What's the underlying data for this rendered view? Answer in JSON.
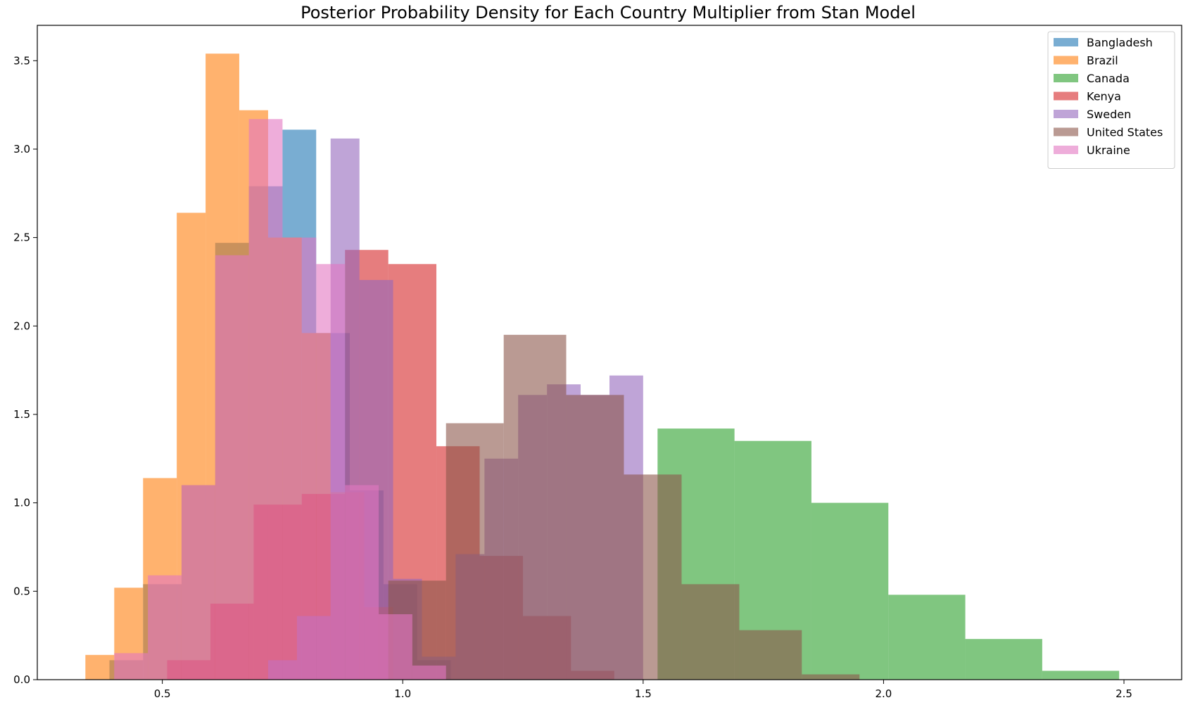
{
  "chart_data": {
    "type": "histogram",
    "title": "Posterior Probability Density for Each Country Multiplier from Stan Model",
    "xlabel": "",
    "ylabel": "",
    "xlim": [
      0.24,
      2.62
    ],
    "ylim": [
      0,
      3.7
    ],
    "xticks": [
      "0.5",
      "1.0",
      "1.5",
      "2.0",
      "2.5"
    ],
    "xtick_values": [
      0.5,
      1.0,
      1.5,
      2.0,
      2.5
    ],
    "yticks": [
      "0.0",
      "0.5",
      "1.0",
      "1.5",
      "2.0",
      "2.5",
      "3.0",
      "3.5"
    ],
    "ytick_values": [
      0,
      0.5,
      1.0,
      1.5,
      2.0,
      2.5,
      3.0,
      3.5
    ],
    "grid": false,
    "legend_position": "upper right",
    "alpha": 0.6,
    "series": [
      {
        "name": "Bangladesh",
        "color": "#1f77b4",
        "edges": [
          0.39,
          0.46,
          0.54,
          0.61,
          0.68,
          0.75,
          0.82,
          0.89,
          0.96,
          1.03,
          1.1
        ],
        "values": [
          0.11,
          0.54,
          1.1,
          2.47,
          2.79,
          3.11,
          1.96,
          1.07,
          0.54,
          0.11
        ]
      },
      {
        "name": "Brazil",
        "color": "#ff7f0e",
        "edges": [
          0.34,
          0.4,
          0.46,
          0.53,
          0.59,
          0.66,
          0.72,
          0.79,
          0.85,
          0.92,
          0.98
        ],
        "values": [
          0.14,
          0.52,
          1.14,
          2.64,
          3.54,
          3.22,
          2.5,
          1.96,
          1.06,
          0.41
        ]
      },
      {
        "name": "Canada",
        "color": "#2ca02c",
        "edges": [
          1.53,
          1.69,
          1.85,
          2.01,
          2.17,
          2.33,
          2.49
        ],
        "values": [
          1.42,
          1.35,
          1.0,
          0.48,
          0.23,
          0.05
        ]
      },
      {
        "name": "Kenya",
        "color": "#d62728",
        "edges": [
          0.51,
          0.6,
          0.69,
          0.79,
          0.88,
          0.97,
          1.07,
          1.16,
          1.25,
          1.35,
          1.44
        ],
        "values": [
          0.11,
          0.43,
          0.99,
          1.05,
          2.43,
          2.35,
          1.32,
          0.7,
          0.36,
          0.05
        ]
      },
      {
        "name": "Sweden",
        "color": "#9467bd",
        "edges": [
          0.72,
          0.78,
          0.85,
          0.91,
          0.98,
          1.04,
          1.11,
          1.17,
          1.24,
          1.3,
          1.37,
          1.43,
          1.5
        ],
        "values": [
          0.11,
          0.36,
          3.06,
          2.26,
          0.57,
          0.13,
          0.71,
          1.25,
          1.61,
          1.67,
          1.61,
          1.72
        ]
      },
      {
        "name": "United States",
        "color": "#8c564b",
        "edges": [
          0.97,
          1.09,
          1.21,
          1.34,
          1.46,
          1.58,
          1.7,
          1.83,
          1.95
        ],
        "values": [
          0.56,
          1.45,
          1.95,
          1.61,
          1.16,
          0.54,
          0.28,
          0.03
        ]
      },
      {
        "name": "Ukraine",
        "color": "#e377c2",
        "edges": [
          0.4,
          0.47,
          0.54,
          0.61,
          0.68,
          0.75,
          0.82,
          0.88,
          0.95,
          1.02,
          1.09
        ],
        "values": [
          0.15,
          0.59,
          1.1,
          2.4,
          3.17,
          2.5,
          2.35,
          1.1,
          0.37,
          0.08
        ]
      }
    ]
  }
}
